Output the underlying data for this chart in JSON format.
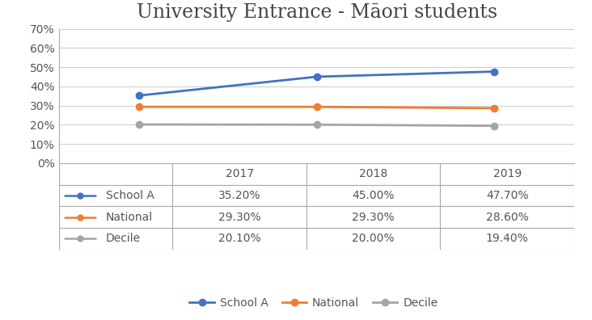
{
  "title": "University Entrance - Māori students",
  "years": [
    2017,
    2018,
    2019
  ],
  "series": [
    {
      "label": "School A",
      "values": [
        0.352,
        0.45,
        0.477
      ],
      "color": "#4472C4",
      "marker": "o"
    },
    {
      "label": "National",
      "values": [
        0.293,
        0.293,
        0.286
      ],
      "color": "#ED7D31",
      "marker": "o"
    },
    {
      "label": "Decile",
      "values": [
        0.201,
        0.2,
        0.194
      ],
      "color": "#A5A5A5",
      "marker": "o"
    }
  ],
  "table_values": [
    [
      "35.20%",
      "45.00%",
      "47.70%"
    ],
    [
      "29.30%",
      "29.30%",
      "28.60%"
    ],
    [
      "20.10%",
      "20.00%",
      "19.40%"
    ]
  ],
  "ylim": [
    0,
    0.7
  ],
  "yticks": [
    0.0,
    0.1,
    0.2,
    0.3,
    0.4,
    0.5,
    0.6,
    0.7
  ],
  "ytick_labels": [
    "0%",
    "10%",
    "20%",
    "30%",
    "40%",
    "50%",
    "60%",
    "70%"
  ],
  "background_color": "#FFFFFF",
  "title_fontsize": 17,
  "tick_fontsize": 10,
  "table_fontsize": 10,
  "legend_fontsize": 10,
  "grid_color": "#D0D0D0",
  "border_color": "#AAAAAA",
  "text_color": "#555555"
}
